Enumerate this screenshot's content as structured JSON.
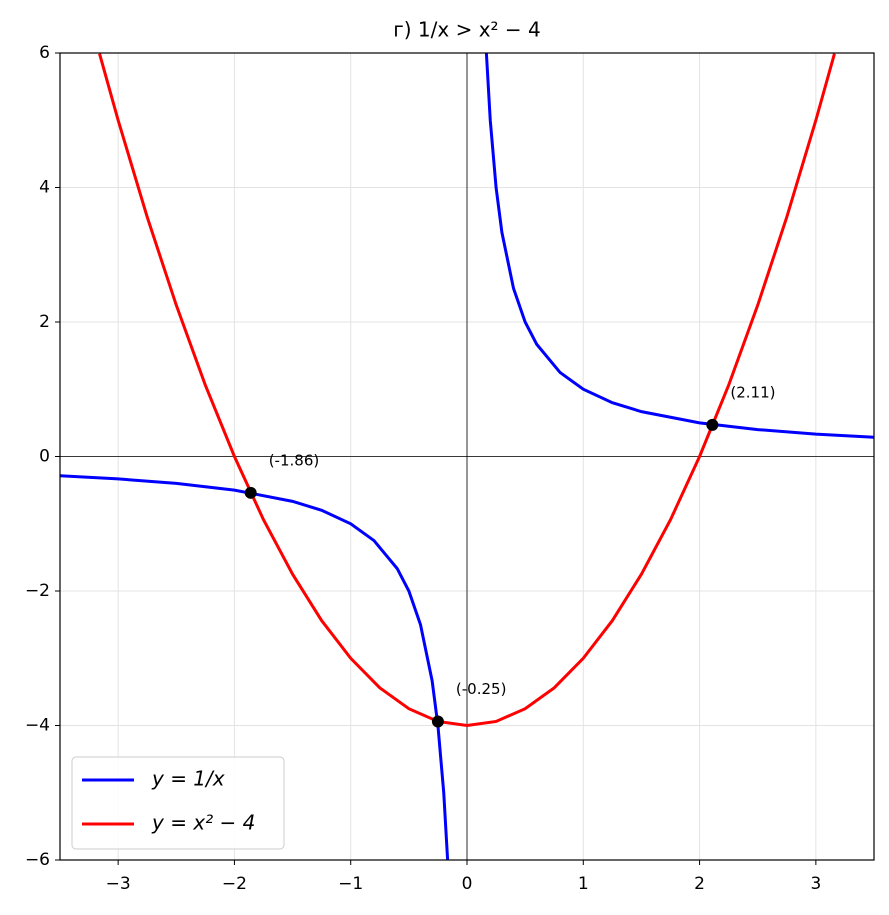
{
  "chart_data": {
    "type": "line",
    "title": "г) 1/x > x² − 4",
    "xlim": [
      -3.5,
      3.5
    ],
    "ylim": [
      -6,
      6
    ],
    "xticks": [
      {
        "value": -3,
        "label": "−3"
      },
      {
        "value": -2,
        "label": "−2"
      },
      {
        "value": -1,
        "label": "−1"
      },
      0,
      1,
      2,
      3
    ],
    "yticks": [
      {
        "value": -6,
        "label": "−6"
      },
      {
        "value": -4,
        "label": "−4"
      },
      {
        "value": -2,
        "label": "−2"
      },
      0,
      2,
      4,
      6
    ],
    "grid": true,
    "legend": "lower left",
    "series": [
      {
        "name": "y = 1/x",
        "color": "#0000ff",
        "x": [
          -3.5,
          -3,
          -2.5,
          -2,
          -1.5,
          -1.25,
          -1,
          -0.8,
          -0.6,
          -0.5,
          -0.4,
          -0.3,
          -0.25,
          -0.2,
          -0.1667,
          0,
          0.1667,
          0.2,
          0.25,
          0.3,
          0.4,
          0.5,
          0.6,
          0.8,
          1,
          1.25,
          1.5,
          2,
          2.5,
          3,
          3.5
        ],
        "values": [
          -0.286,
          -0.333,
          -0.4,
          -0.5,
          -0.667,
          -0.8,
          -1,
          -1.25,
          -1.667,
          -2,
          -2.5,
          -3.333,
          -4,
          -5,
          -6,
          null,
          6,
          5,
          4,
          3.333,
          2.5,
          2,
          1.667,
          1.25,
          1,
          0.8,
          0.667,
          0.5,
          0.4,
          0.333,
          0.286
        ]
      },
      {
        "name": "y = x² − 4",
        "color": "#ff0000",
        "x": [
          -3.16,
          -3,
          -2.75,
          -2.5,
          -2.25,
          -2,
          -1.75,
          -1.5,
          -1.25,
          -1,
          -0.75,
          -0.5,
          -0.25,
          0,
          0.25,
          0.5,
          0.75,
          1,
          1.25,
          1.5,
          1.75,
          2,
          2.25,
          2.5,
          2.75,
          3,
          3.16
        ],
        "values": [
          5.99,
          5,
          3.56,
          2.25,
          1.06,
          0,
          -0.94,
          -1.75,
          -2.44,
          -3,
          -3.44,
          -3.75,
          -3.94,
          -4,
          -3.94,
          -3.75,
          -3.44,
          -3,
          -2.44,
          -1.75,
          -0.94,
          0,
          1.06,
          2.25,
          3.56,
          5,
          5.99
        ]
      }
    ],
    "points": {
      "color": "#000000",
      "x": [
        -1.86,
        -0.25,
        2.11
      ],
      "values": [
        -0.54,
        -3.94,
        0.47
      ],
      "labels": [
        "(-1.86)",
        "(-0.25)",
        "(2.11)"
      ]
    }
  }
}
